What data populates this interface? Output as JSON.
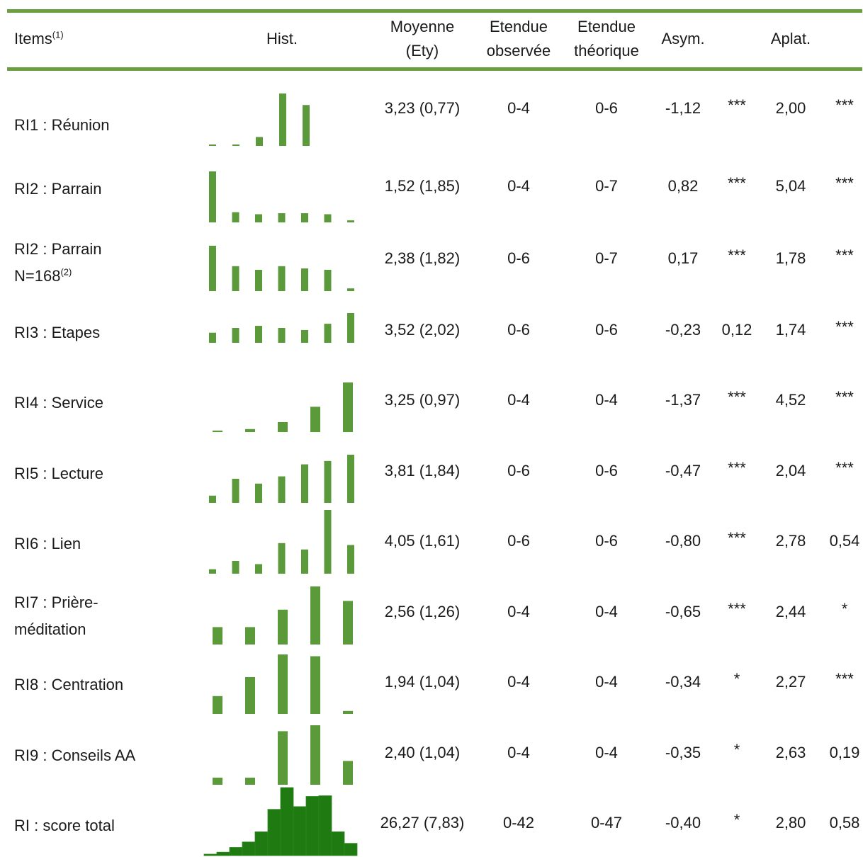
{
  "header": {
    "items": "Items",
    "items_note": "(1)",
    "hist": "Hist.",
    "moyenne_1": "Moyenne",
    "moyenne_2": "(Ety)",
    "etendue_obs_1": "Etendue",
    "etendue_obs_2": "observée",
    "etendue_theo_1": "Etendue",
    "etendue_theo_2": "théorique",
    "asym": "Asym.",
    "aplat": "Aplat."
  },
  "colors": {
    "rule": "#6a9e3f",
    "bar": "#5b9a3a",
    "bar_total": "#1f7a12"
  },
  "rows": [
    {
      "label": "RI1 : Réunion",
      "mean": "3,23 (0,77)",
      "obs": "0-4",
      "theo": "0-6",
      "asym": "-1,12",
      "asym_sig": "***",
      "aplat": "2,00",
      "aplat_sig": "***",
      "hist": [
        0.02,
        0.02,
        0.17,
        1.0,
        0.78
      ]
    },
    {
      "label": "RI2 : Parrain",
      "mean": "1,52 (1,85)",
      "obs": "0-4",
      "theo": "0-7",
      "asym": "0,82",
      "asym_sig": "***",
      "aplat": "5,04",
      "aplat_sig": "***",
      "hist": [
        1.0,
        0.2,
        0.16,
        0.18,
        0.18,
        0.16,
        0.04
      ]
    },
    {
      "label": "RI2 : Parrain",
      "label_2": "N=168",
      "label_note": "(2)",
      "mean": "2,38 (1,82)",
      "obs": "0-6",
      "theo": "0-7",
      "asym": "0,17",
      "asym_sig": "***",
      "aplat": "1,78",
      "aplat_sig": "***",
      "hist": [
        1.0,
        0.55,
        0.47,
        0.55,
        0.5,
        0.47,
        0.06
      ]
    },
    {
      "label": "RI3 : Etapes",
      "mean": "3,52 (2,02)",
      "obs": "0-6",
      "theo": "0-6",
      "asym": "-0,23",
      "asym_sig": "0,12",
      "aplat": "1,74",
      "aplat_sig": "***",
      "hist": [
        0.34,
        0.5,
        0.57,
        0.5,
        0.43,
        0.64,
        1.0
      ]
    },
    {
      "label": "RI4 : Service",
      "mean": "3,25 (0,97)",
      "obs": "0-4",
      "theo": "0-4",
      "asym": "-1,37",
      "asym_sig": "***",
      "aplat": "4,52",
      "aplat_sig": "***",
      "hist": [
        0.03,
        0.06,
        0.2,
        0.51,
        1.0
      ]
    },
    {
      "label": "RI5 : Lecture",
      "mean": "3,81 (1,84)",
      "obs": "0-6",
      "theo": "0-6",
      "asym": "-0,47",
      "asym_sig": "***",
      "aplat": "2,04",
      "aplat_sig": "***",
      "hist": [
        0.15,
        0.5,
        0.4,
        0.55,
        0.8,
        0.87,
        1.0
      ]
    },
    {
      "label": "RI6 : Lien",
      "mean": "4,05 (1,61)",
      "obs": "0-6",
      "theo": "0-6",
      "asym": "-0,80",
      "asym_sig": "***",
      "aplat": "2,78",
      "aplat_sig": "0,54",
      "hist": [
        0.07,
        0.2,
        0.15,
        0.48,
        0.38,
        1.0,
        0.45
      ]
    },
    {
      "label": "RI7 : Prière-",
      "label_2": "méditation",
      "mean": "2,56 (1,26)",
      "obs": "0-4",
      "theo": "0-4",
      "asym": "-0,65",
      "asym_sig": "***",
      "aplat": "2,44",
      "aplat_sig": "*",
      "hist": [
        0.3,
        0.3,
        0.6,
        1.0,
        0.75
      ]
    },
    {
      "label": "RI8 : Centration",
      "mean": "1,94 (1,04)",
      "obs": "0-4",
      "theo": "0-4",
      "asym": "-0,34",
      "asym_sig": "*",
      "aplat": "2,27",
      "aplat_sig": "***",
      "hist": [
        0.3,
        0.62,
        1.0,
        0.97,
        0.05
      ]
    },
    {
      "label": "RI9 : Conseils AA",
      "mean": "2,40 (1,04)",
      "obs": "0-4",
      "theo": "0-4",
      "asym": "-0,35",
      "asym_sig": "*",
      "aplat": "2,63",
      "aplat_sig": "0,19",
      "hist": [
        0.12,
        0.12,
        0.9,
        1.0,
        0.4
      ]
    },
    {
      "label": "RI : score total",
      "mean": "26,27 (7,83)",
      "obs": "0-42",
      "theo": "0-47",
      "asym": "-0,40",
      "asym_sig": "*",
      "aplat": "2,80",
      "aplat_sig": "0,58",
      "hist_total": [
        0.02,
        0.05,
        0.12,
        0.2,
        0.35,
        0.68,
        1.0,
        0.72,
        0.87,
        0.88,
        0.35,
        0.18
      ]
    }
  ]
}
